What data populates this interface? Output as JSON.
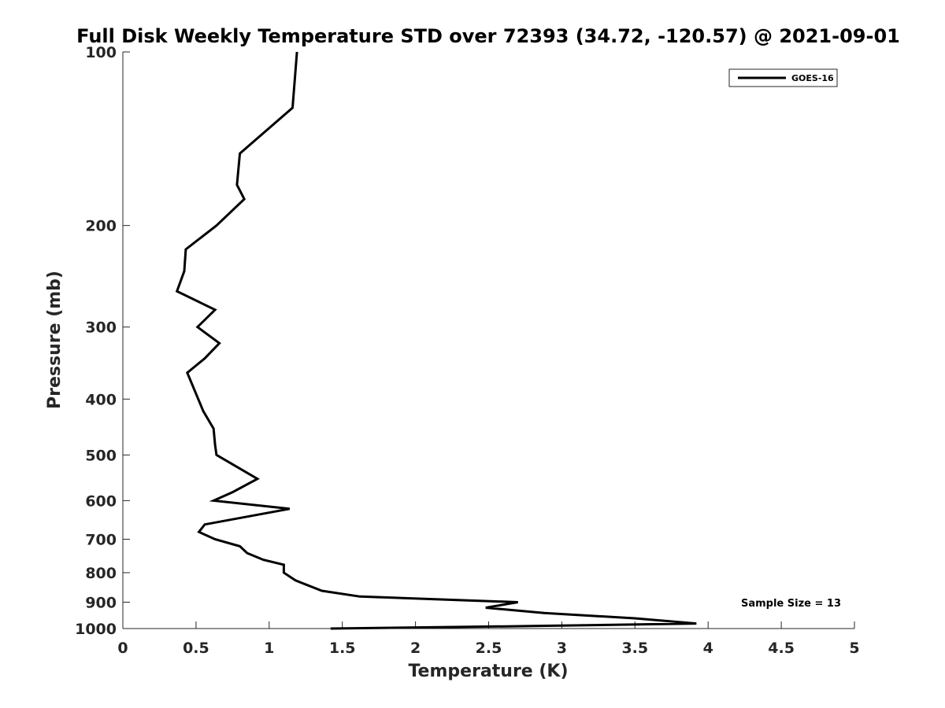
{
  "chart_data": {
    "type": "line",
    "title": "Full Disk Weekly Temperature STD over 72393 (34.72, -120.57) @ 2021-09-01",
    "xlabel": "Temperature (K)",
    "ylabel": "Pressure (mb)",
    "xlim": [
      0,
      5
    ],
    "ylim": [
      100,
      1000
    ],
    "yscale": "log",
    "y_reversed": true,
    "x_ticks": [
      "0",
      "0.5",
      "1",
      "1.5",
      "2",
      "2.5",
      "3",
      "3.5",
      "4",
      "4.5",
      "5"
    ],
    "y_ticks": [
      "100",
      "200",
      "300",
      "400",
      "500",
      "600",
      "700",
      "800",
      "900",
      "1000"
    ],
    "grid": false,
    "legend": {
      "position": "top-right",
      "entries": [
        "GOES-16"
      ]
    },
    "annotation": "Sample Size = 13",
    "series": [
      {
        "name": "GOES-16",
        "color": "#000000",
        "points": [
          {
            "x": 1.19,
            "p": 100
          },
          {
            "x": 1.16,
            "p": 125
          },
          {
            "x": 0.8,
            "p": 150
          },
          {
            "x": 0.78,
            "p": 170
          },
          {
            "x": 0.83,
            "p": 180
          },
          {
            "x": 0.64,
            "p": 200
          },
          {
            "x": 0.43,
            "p": 220
          },
          {
            "x": 0.42,
            "p": 240
          },
          {
            "x": 0.37,
            "p": 260
          },
          {
            "x": 0.63,
            "p": 280
          },
          {
            "x": 0.51,
            "p": 300
          },
          {
            "x": 0.66,
            "p": 320
          },
          {
            "x": 0.56,
            "p": 340
          },
          {
            "x": 0.44,
            "p": 360
          },
          {
            "x": 0.55,
            "p": 420
          },
          {
            "x": 0.62,
            "p": 450
          },
          {
            "x": 0.63,
            "p": 480
          },
          {
            "x": 0.64,
            "p": 500
          },
          {
            "x": 0.92,
            "p": 550
          },
          {
            "x": 0.75,
            "p": 580
          },
          {
            "x": 0.62,
            "p": 600
          },
          {
            "x": 1.14,
            "p": 620
          },
          {
            "x": 0.56,
            "p": 660
          },
          {
            "x": 0.52,
            "p": 680
          },
          {
            "x": 0.63,
            "p": 700
          },
          {
            "x": 0.8,
            "p": 720
          },
          {
            "x": 0.85,
            "p": 740
          },
          {
            "x": 0.96,
            "p": 760
          },
          {
            "x": 1.1,
            "p": 775
          },
          {
            "x": 1.1,
            "p": 800
          },
          {
            "x": 1.18,
            "p": 825
          },
          {
            "x": 1.36,
            "p": 860
          },
          {
            "x": 1.62,
            "p": 880
          },
          {
            "x": 2.7,
            "p": 900
          },
          {
            "x": 2.48,
            "p": 920
          },
          {
            "x": 2.88,
            "p": 940
          },
          {
            "x": 3.5,
            "p": 960
          },
          {
            "x": 3.92,
            "p": 980
          },
          {
            "x": 2.8,
            "p": 990
          },
          {
            "x": 1.42,
            "p": 1000
          }
        ]
      }
    ]
  }
}
